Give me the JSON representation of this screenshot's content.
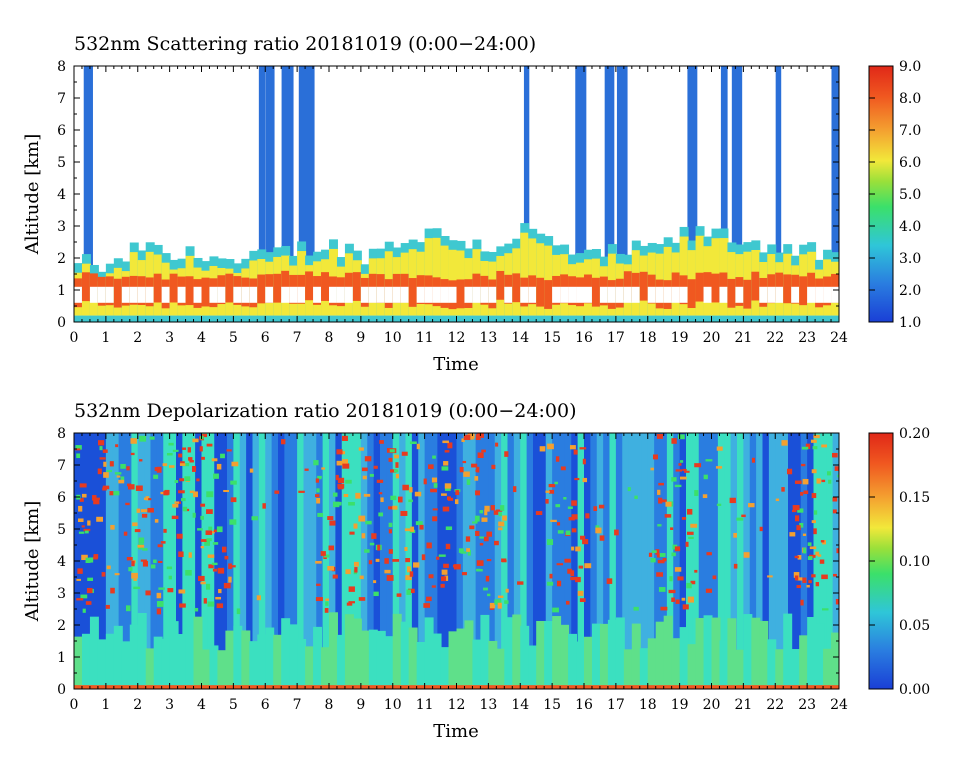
{
  "chart_data": [
    {
      "type": "heatmap",
      "title": "532nm Scattering ratio  20181019 (0:00−24:00)",
      "xlabel": "Time",
      "ylabel": "Altitude [km]",
      "xlim": [
        0,
        24
      ],
      "ylim": [
        0,
        8
      ],
      "x_ticks": [
        "0",
        "1",
        "2",
        "3",
        "4",
        "5",
        "6",
        "7",
        "8",
        "9",
        "10",
        "11",
        "12",
        "13",
        "14",
        "15",
        "16",
        "17",
        "18",
        "19",
        "20",
        "21",
        "22",
        "23",
        "24"
      ],
      "y_ticks": [
        "0",
        "1",
        "2",
        "3",
        "4",
        "5",
        "6",
        "7",
        "8"
      ],
      "colorbar": {
        "min": 1.0,
        "max": 9.0,
        "labels": [
          "1.0",
          "2.0",
          "3.0",
          "4.0",
          "5.0",
          "6.0",
          "7.0",
          "8.0",
          "9.0"
        ]
      },
      "cloud_columns": [
        0.45,
        5.9,
        6.15,
        6.7,
        7.2,
        7.4,
        14.2,
        15.9,
        16.8,
        17.2,
        19.4,
        20.4,
        20.8,
        22.1,
        23.9
      ],
      "top_layer_km": [
        2.0,
        1.6,
        2.4,
        2.0,
        2.2,
        1.8,
        2.1,
        2.3,
        2.4,
        2.1,
        2.5,
        2.8,
        2.6,
        2.3,
        2.9,
        2.4,
        2.0,
        2.2,
        2.3,
        2.7,
        2.8,
        2.5,
        2.4,
        2.2,
        1.8
      ]
    },
    {
      "type": "heatmap",
      "title": "532nm Depolarization ratio  20181019 (0:00−24:00)",
      "xlabel": "Time",
      "ylabel": "Altitude [km]",
      "xlim": [
        0,
        24
      ],
      "ylim": [
        0,
        8
      ],
      "x_ticks": [
        "0",
        "1",
        "2",
        "3",
        "4",
        "5",
        "6",
        "7",
        "8",
        "9",
        "10",
        "11",
        "12",
        "13",
        "14",
        "15",
        "16",
        "17",
        "18",
        "19",
        "20",
        "21",
        "22",
        "23",
        "24"
      ],
      "y_ticks": [
        "0",
        "1",
        "2",
        "3",
        "4",
        "5",
        "6",
        "7",
        "8"
      ],
      "colorbar": {
        "min": 0.0,
        "max": 0.2,
        "labels": [
          "0.00",
          "0.05",
          "0.10",
          "0.15",
          "0.20"
        ]
      }
    }
  ]
}
